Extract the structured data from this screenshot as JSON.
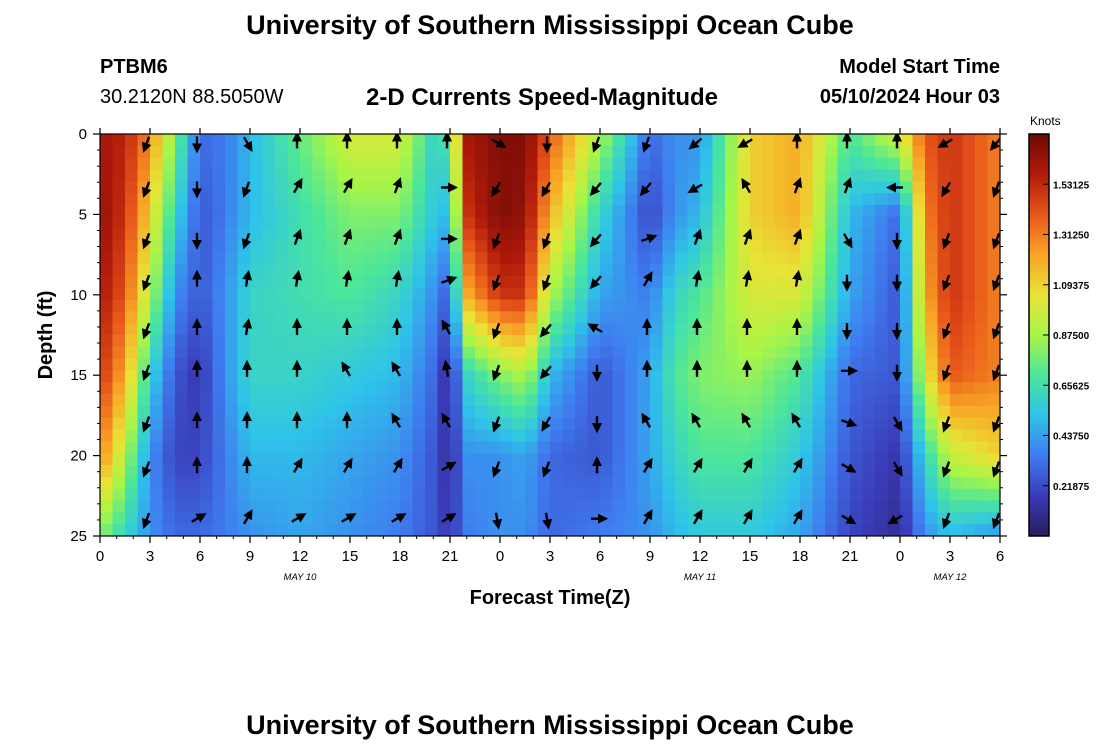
{
  "header": {
    "title": "University of Southern Mississippi Ocean Cube",
    "station": "PTBM6",
    "coords": "30.2120N  88.5050W",
    "subtitle": "2-D Currents Speed-Magnitude",
    "model_start_label": "Model Start Time",
    "model_start_value": "05/10/2024 Hour 03"
  },
  "footer": {
    "title": "University of Southern Mississippi Ocean Cube"
  },
  "colors": {
    "scale": [
      "#2a1a5e",
      "#3a3bb8",
      "#3f7cf0",
      "#2ec4e8",
      "#4ce69a",
      "#a8f548",
      "#e8e335",
      "#f9a426",
      "#e8561a",
      "#b01a0a",
      "#6e0a06"
    ]
  },
  "chart_data": {
    "type": "heatmap",
    "xlabel": "Forecast Time(Z)",
    "ylabel": "Depth (ft)",
    "x_ticks": [
      "0",
      "3",
      "6",
      "9",
      "12",
      "15",
      "18",
      "21",
      "0",
      "3",
      "6",
      "9",
      "12",
      "15",
      "18",
      "21",
      "0",
      "3",
      "6"
    ],
    "x_range_hours": [
      0,
      54
    ],
    "date_labels": [
      {
        "label": "MAY 10",
        "hour": 12
      },
      {
        "label": "MAY 11",
        "hour": 36
      },
      {
        "label": "MAY 12",
        "hour": 51
      }
    ],
    "y_ticks": [
      "0",
      "5",
      "10",
      "15",
      "20",
      "25"
    ],
    "ylim": [
      0,
      25
    ],
    "y_inverted": true,
    "colorbar": {
      "title": "Knots",
      "range": [
        0,
        1.75
      ],
      "ticks": [
        "0.21875",
        "0.43750",
        "0.65625",
        "0.87500",
        "1.09375",
        "1.31250",
        "1.53125"
      ]
    },
    "speed_grid": {
      "depths": [
        0,
        5,
        10,
        15,
        20,
        25
      ],
      "hours": [
        0,
        1.5,
        3,
        4.5,
        6,
        7.5,
        9,
        12,
        15,
        18,
        20,
        21,
        22,
        24,
        25.5,
        27,
        30,
        33,
        34.5,
        36,
        39,
        42,
        45,
        48,
        49.5,
        51,
        54
      ],
      "values": [
        [
          1.6,
          1.55,
          1.3,
          0.8,
          0.3,
          0.35,
          0.5,
          0.75,
          1.0,
          1.0,
          0.6,
          0.7,
          1.6,
          1.7,
          1.7,
          1.4,
          0.9,
          0.3,
          0.4,
          0.4,
          1.1,
          1.2,
          0.7,
          1.0,
          1.4,
          1.5,
          1.3
        ],
        [
          1.65,
          1.5,
          1.1,
          0.6,
          0.25,
          0.35,
          0.5,
          0.65,
          0.8,
          0.8,
          0.55,
          0.5,
          1.5,
          1.7,
          1.65,
          1.2,
          0.6,
          0.2,
          0.4,
          0.5,
          1.1,
          1.2,
          0.5,
          0.3,
          1.3,
          1.5,
          1.3
        ],
        [
          1.6,
          1.4,
          0.9,
          0.4,
          0.25,
          0.4,
          0.6,
          0.65,
          0.7,
          0.6,
          0.4,
          0.25,
          1.2,
          1.5,
          1.5,
          0.9,
          0.45,
          0.35,
          0.6,
          0.7,
          1.0,
          1.0,
          0.45,
          0.25,
          1.2,
          1.5,
          1.3
        ],
        [
          1.5,
          1.2,
          0.6,
          0.25,
          0.15,
          0.4,
          0.6,
          0.6,
          0.55,
          0.5,
          0.3,
          0.1,
          0.6,
          0.8,
          0.9,
          0.5,
          0.25,
          0.45,
          0.7,
          0.8,
          0.85,
          0.7,
          0.3,
          0.25,
          1.0,
          1.4,
          1.3
        ],
        [
          1.3,
          0.9,
          0.4,
          0.2,
          0.2,
          0.35,
          0.5,
          0.5,
          0.45,
          0.4,
          0.25,
          0.1,
          0.4,
          0.4,
          0.45,
          0.3,
          0.25,
          0.45,
          0.6,
          0.7,
          0.7,
          0.55,
          0.25,
          0.15,
          0.6,
          0.95,
          1.1
        ],
        [
          0.8,
          0.6,
          0.4,
          0.3,
          0.3,
          0.35,
          0.4,
          0.45,
          0.4,
          0.35,
          0.25,
          0.15,
          0.35,
          0.4,
          0.4,
          0.3,
          0.35,
          0.4,
          0.5,
          0.55,
          0.55,
          0.45,
          0.2,
          0.1,
          0.4,
          0.5,
          0.4
        ]
      ]
    },
    "arrow_depths": [
      0.4,
      3.2,
      6.4,
      9.0,
      12.0,
      14.6,
      17.8,
      20.6,
      23.8
    ],
    "arrow_hours": [
      3,
      6,
      9,
      12,
      15,
      18,
      21,
      24,
      27,
      30,
      33,
      36,
      39,
      42,
      45,
      48,
      51,
      54
    ],
    "arrow_directions_deg": [
      [
        200,
        180,
        150,
        0,
        0,
        0,
        0,
        120,
        180,
        200,
        200,
        230,
        240,
        0,
        0,
        0,
        240,
        220
      ],
      [
        200,
        180,
        200,
        30,
        30,
        20,
        90,
        210,
        210,
        220,
        220,
        240,
        330,
        20,
        20,
        270,
        210,
        200
      ],
      [
        200,
        180,
        200,
        20,
        20,
        20,
        90,
        200,
        200,
        220,
        70,
        20,
        20,
        20,
        150,
        180,
        200,
        200
      ],
      [
        200,
        0,
        10,
        10,
        10,
        10,
        70,
        200,
        200,
        220,
        30,
        10,
        10,
        10,
        180,
        180,
        200,
        200
      ],
      [
        200,
        0,
        10,
        0,
        0,
        0,
        330,
        200,
        220,
        300,
        0,
        0,
        0,
        0,
        180,
        180,
        200,
        200
      ],
      [
        200,
        0,
        0,
        0,
        330,
        330,
        350,
        200,
        220,
        180,
        0,
        0,
        0,
        0,
        90,
        180,
        200,
        200
      ],
      [
        200,
        0,
        0,
        0,
        0,
        330,
        330,
        200,
        210,
        180,
        330,
        330,
        330,
        330,
        110,
        150,
        200,
        200
      ],
      [
        200,
        0,
        0,
        30,
        30,
        30,
        60,
        200,
        200,
        0,
        30,
        30,
        30,
        30,
        120,
        150,
        200,
        200
      ],
      [
        200,
        60,
        30,
        60,
        60,
        60,
        60,
        170,
        170,
        90,
        30,
        30,
        30,
        30,
        120,
        240,
        200,
        200
      ]
    ]
  }
}
